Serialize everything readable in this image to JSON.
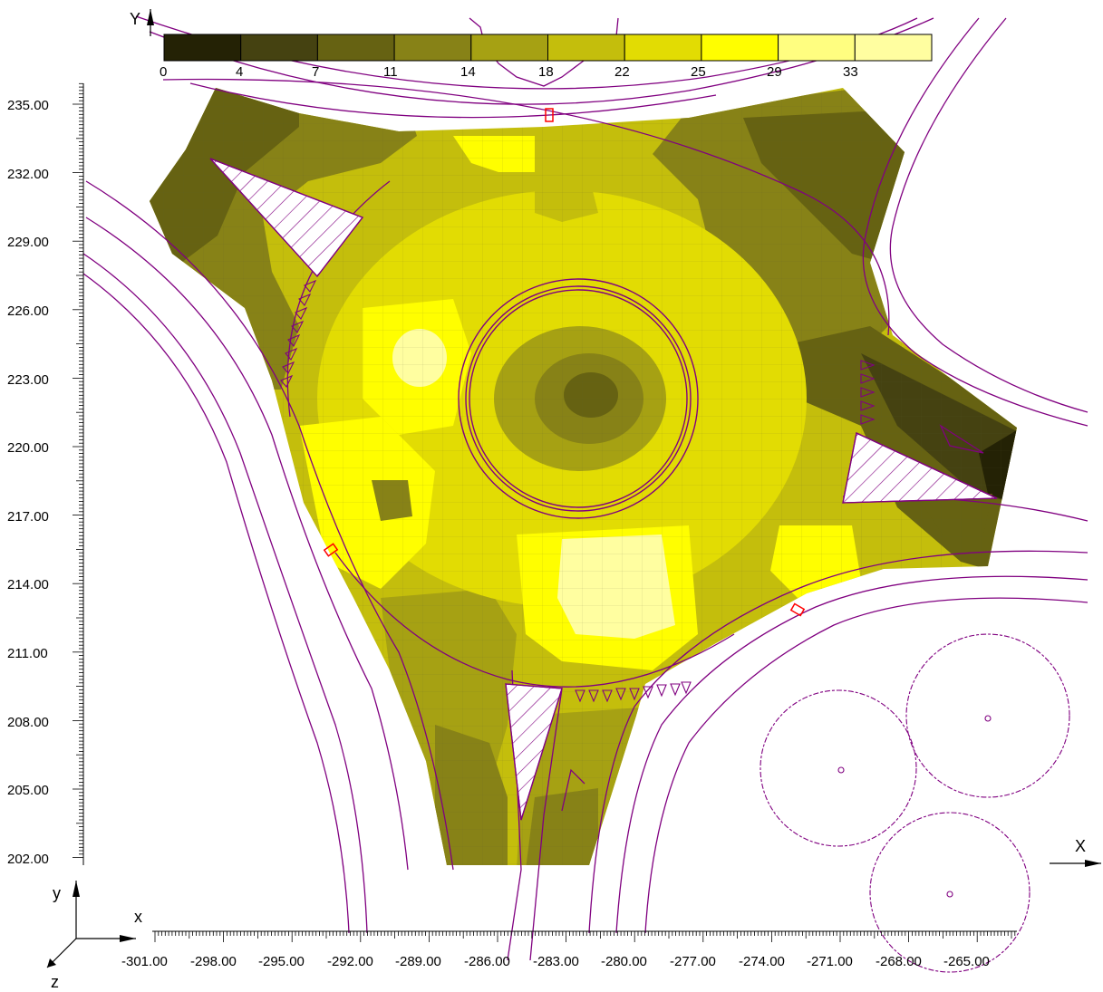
{
  "legend": {
    "values": [
      "0",
      "4",
      "7",
      "11",
      "14",
      "18",
      "22",
      "25",
      "29",
      "33"
    ],
    "colors": [
      "#242205",
      "#454211",
      "#666212",
      "#878217",
      "#a6a113",
      "#c4be0c",
      "#e2dc03",
      "#fffe00",
      "#fffe80",
      "#fffea0"
    ]
  },
  "axes": {
    "y_axis_letter": "Y",
    "x_axis_letter": "X",
    "y_ticks": [
      "235.00",
      "232.00",
      "229.00",
      "226.00",
      "223.00",
      "220.00",
      "217.00",
      "214.00",
      "211.00",
      "208.00",
      "205.00",
      "202.00"
    ],
    "x_ticks": [
      "-301.00",
      "-298.00",
      "-295.00",
      "-292.00",
      "-289.00",
      "-286.00",
      "-283.00",
      "-280.00",
      "-277.00",
      "-274.00",
      "-271.00",
      "-268.00",
      "-265.00"
    ]
  },
  "triad": {
    "x": "x",
    "y": "y",
    "z": "z"
  },
  "colors": {
    "linework": "#800080",
    "marker": "#ff0000",
    "grid": "#8a8a5a"
  }
}
